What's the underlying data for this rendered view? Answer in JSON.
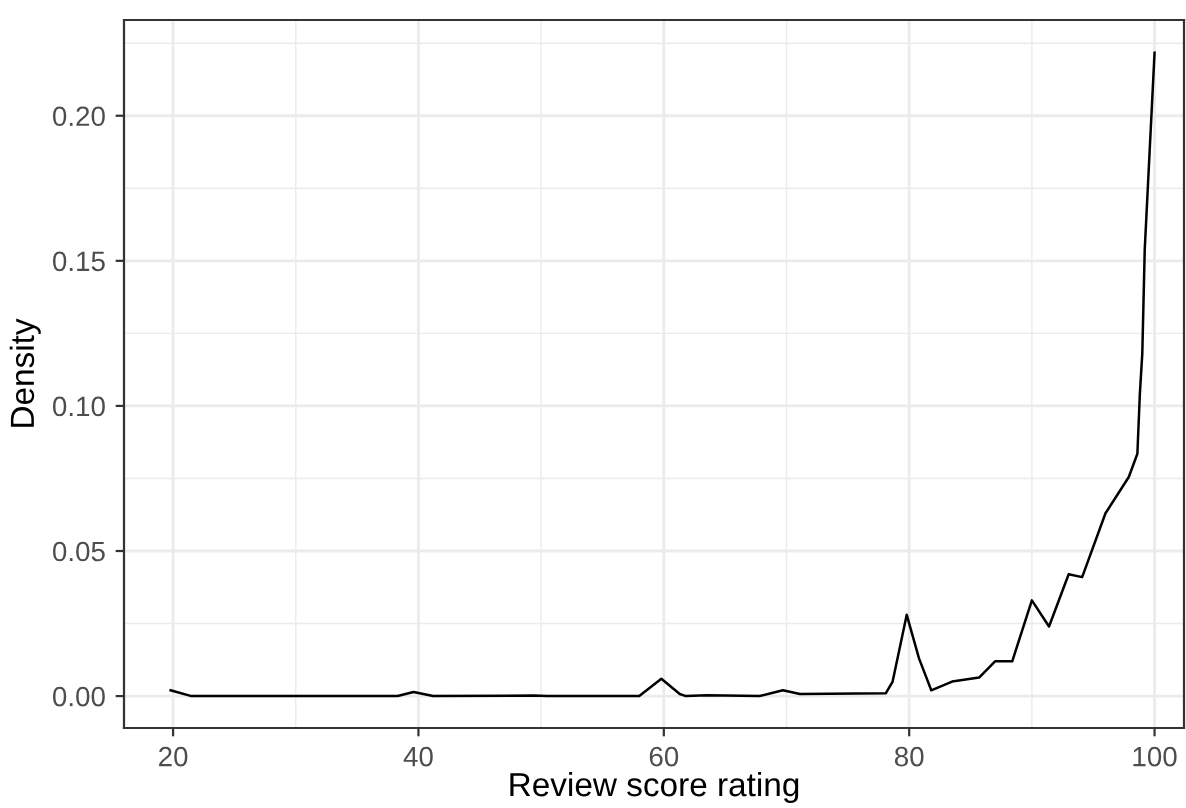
{
  "chart_data": {
    "type": "line",
    "xlabel": "Review score rating",
    "ylabel": "Density",
    "x": [
      19.8,
      21.5,
      30,
      38.3,
      39.6,
      41.2,
      49.4,
      50.5,
      58.0,
      59.8,
      61.3,
      61.8,
      63.5,
      67.8,
      69.7,
      71.1,
      78.1,
      78.65,
      79.8,
      80.8,
      81.8,
      83.5,
      85.7,
      87.0,
      88.4,
      90.0,
      91.4,
      93.0,
      94.1,
      96.0,
      97.9,
      98.6,
      98.8,
      99.0,
      99.2,
      100.0
    ],
    "values": [
      0.002,
      0.0,
      0.0,
      0.0,
      0.0014,
      0.0,
      0.0002,
      0.0,
      0.0,
      0.006,
      0.0007,
      0.0,
      0.0003,
      0.0,
      0.002,
      0.0007,
      0.001,
      0.005,
      0.028,
      0.013,
      0.002,
      0.005,
      0.0064,
      0.012,
      0.012,
      0.033,
      0.024,
      0.042,
      0.041,
      0.063,
      0.0755,
      0.0835,
      0.104,
      0.118,
      0.154,
      0.2217
    ],
    "color": "#000000",
    "xlim": [
      16,
      102.4
    ],
    "ylim": [
      -0.011,
      0.233
    ],
    "xticks": [
      20,
      40,
      60,
      80,
      100
    ],
    "yticks": [
      {
        "value": 0,
        "label": "0.00"
      },
      {
        "value": 0.05,
        "label": "0.05"
      },
      {
        "value": 0.1,
        "label": "0.10"
      },
      {
        "value": 0.15,
        "label": "0.15"
      },
      {
        "value": 0.2,
        "label": "0.20"
      }
    ],
    "grid": true,
    "legend": false
  }
}
